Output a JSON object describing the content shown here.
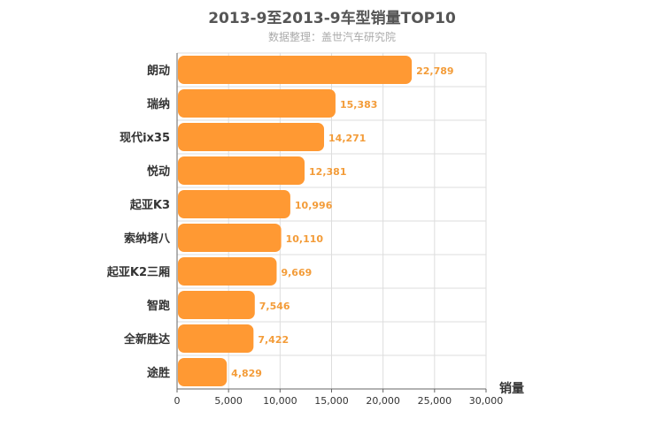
{
  "chart_data": {
    "type": "bar",
    "orientation": "horizontal",
    "title": "2013-9至2013-9车型销量TOP10",
    "subtitle": "数据整理：盖世汽车研究院",
    "xlabel": "销量",
    "ylabel": "",
    "categories": [
      "朗动",
      "瑞纳",
      "现代ix35",
      "悦动",
      "起亚K3",
      "索纳塔八",
      "起亚K2三厢",
      "智跑",
      "全新胜达",
      "途胜"
    ],
    "values": [
      22789,
      15383,
      14271,
      12381,
      10996,
      10110,
      9669,
      7546,
      7422,
      4829
    ],
    "value_labels": [
      "22,789",
      "15,383",
      "14,271",
      "12,381",
      "10,996",
      "10,110",
      "9,669",
      "7,546",
      "7,422",
      "4,829"
    ],
    "xlim": [
      0,
      30000
    ],
    "xticks": [
      0,
      5000,
      10000,
      15000,
      20000,
      25000,
      30000
    ],
    "xtick_labels": [
      "0",
      "5,000",
      "10,000",
      "15,000",
      "20,000",
      "25,000",
      "30,000"
    ],
    "grid": true,
    "bar_color": "#ff9933"
  }
}
